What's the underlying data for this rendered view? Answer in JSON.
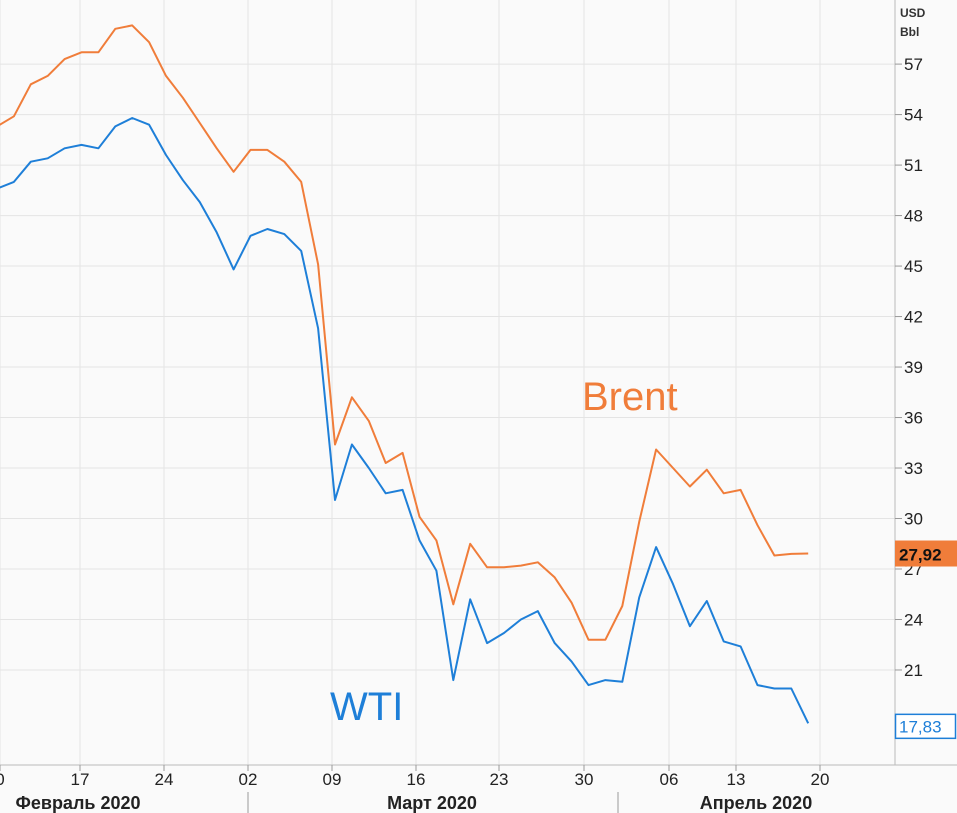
{
  "chart_data": {
    "type": "line",
    "unit_label": [
      "USD",
      "Bbl"
    ],
    "ylim": [
      17,
      59
    ],
    "y_ticks": [
      21,
      24,
      27,
      30,
      33,
      36,
      39,
      42,
      45,
      48,
      51,
      54,
      57
    ],
    "x_tick_labels": [
      "0",
      "17",
      "24",
      "02",
      "09",
      "16",
      "23",
      "30",
      "06",
      "13",
      "20"
    ],
    "month_labels": [
      "Февраль 2020",
      "Март 2020",
      "Апрель 2020"
    ],
    "grid": true,
    "series": [
      {
        "name": "Brent",
        "color": "#f07d3a",
        "last_value_label": "27,92",
        "values": [
          53.3,
          53.9,
          55.8,
          56.3,
          57.3,
          57.7,
          57.7,
          59.1,
          59.3,
          58.3,
          56.3,
          55.0,
          53.5,
          52.0,
          50.6,
          51.9,
          51.9,
          51.2,
          50.0,
          45.1,
          34.4,
          37.2,
          35.8,
          33.3,
          33.9,
          30.1,
          28.7,
          24.9,
          28.5,
          27.1,
          27.1,
          27.2,
          27.4,
          26.5,
          25.0,
          22.8,
          22.8,
          24.8,
          29.8,
          34.1,
          33.0,
          31.9,
          32.9,
          31.5,
          31.7,
          29.6,
          27.8,
          27.9,
          27.92
        ]
      },
      {
        "name": "WTI",
        "color": "#1e7fd8",
        "last_value_label": "17,83",
        "values": [
          49.6,
          50.0,
          51.2,
          51.4,
          52.0,
          52.2,
          52.0,
          53.3,
          53.8,
          53.4,
          51.6,
          50.1,
          48.8,
          47.0,
          44.8,
          46.8,
          47.2,
          46.9,
          45.9,
          41.3,
          31.1,
          34.4,
          33.0,
          31.5,
          31.7,
          28.7,
          26.9,
          20.4,
          25.2,
          22.6,
          23.2,
          24.0,
          24.5,
          22.6,
          21.5,
          20.1,
          20.4,
          20.3,
          25.3,
          28.3,
          26.1,
          23.6,
          25.1,
          22.7,
          22.4,
          20.1,
          19.9,
          19.9,
          17.83
        ]
      }
    ]
  },
  "colors": {
    "grid": "#e4e4e4",
    "axis": "#bbbbbb",
    "background": "#fafafa"
  }
}
